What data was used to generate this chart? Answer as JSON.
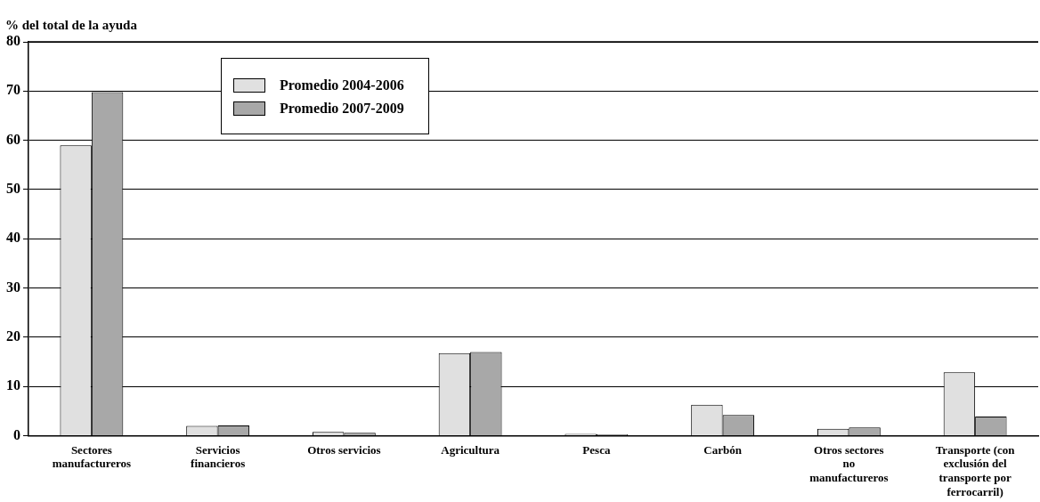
{
  "chart_data": {
    "type": "bar",
    "ylabel": "% del total de la ayuda",
    "categories": [
      "Sectores manufactureros",
      "Servicios financieros",
      "Otros servicios",
      "Agricultura",
      "Pesca",
      "Carbón",
      "Otros sectores no manufactureros",
      "Transporte (con exclusión del transporte por ferrocarril)"
    ],
    "series": [
      {
        "name": "Promedio 2004-2006",
        "color": "#e0e0e0",
        "values": [
          59.0,
          2.0,
          0.8,
          16.8,
          0.4,
          6.3,
          1.4,
          12.9
        ]
      },
      {
        "name": "Promedio 2007-2009",
        "color": "#a8a8a8",
        "values": [
          69.8,
          2.1,
          0.6,
          17.0,
          0.3,
          4.2,
          1.7,
          3.9
        ]
      }
    ],
    "ylim": [
      0,
      80
    ],
    "yticks": [
      0,
      10,
      20,
      30,
      40,
      50,
      60,
      70,
      80
    ],
    "grid": "y",
    "legend": "top left"
  }
}
